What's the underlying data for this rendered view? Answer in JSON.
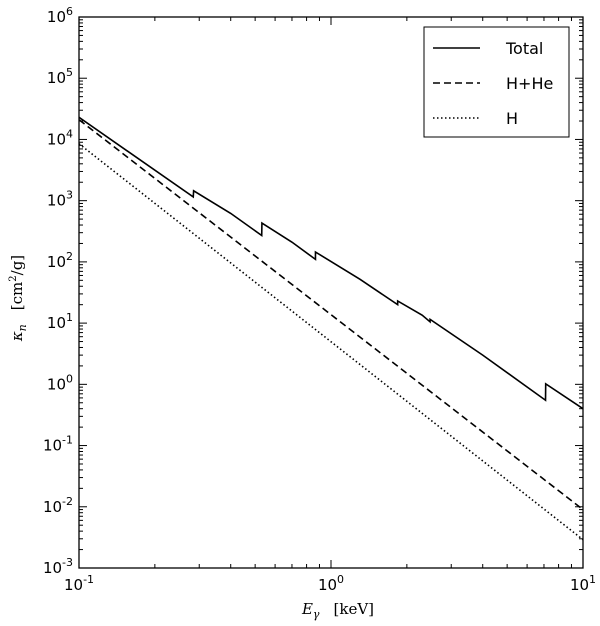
{
  "chart_data": {
    "type": "line",
    "xscale": "log",
    "yscale": "log",
    "xlim": [
      0.1,
      10
    ],
    "ylim": [
      0.001,
      1000000
    ],
    "xlabel": {
      "symbol": "E",
      "sub": "γ",
      "unit": "[keV]"
    },
    "ylabel": {
      "symbol": "κ",
      "sub": "n",
      "unit_pre": "[cm",
      "unit_sup": "2",
      "unit_post": "/g]"
    },
    "x_ticks": [
      {
        "value": 0.1,
        "base": "10",
        "exp": "-1"
      },
      {
        "value": 1,
        "base": "10",
        "exp": "0"
      },
      {
        "value": 10,
        "base": "10",
        "exp": "1"
      }
    ],
    "y_ticks": [
      {
        "value": 0.001,
        "base": "10",
        "exp": "-3"
      },
      {
        "value": 0.01,
        "base": "10",
        "exp": "-2"
      },
      {
        "value": 0.1,
        "base": "10",
        "exp": "-1"
      },
      {
        "value": 1,
        "base": "10",
        "exp": "0"
      },
      {
        "value": 10,
        "base": "10",
        "exp": "1"
      },
      {
        "value": 100,
        "base": "10",
        "exp": "2"
      },
      {
        "value": 1000,
        "base": "10",
        "exp": "3"
      },
      {
        "value": 10000,
        "base": "10",
        "exp": "4"
      },
      {
        "value": 100000,
        "base": "10",
        "exp": "5"
      },
      {
        "value": 1000000,
        "base": "10",
        "exp": "6"
      }
    ],
    "legend_position": "top-right",
    "series": [
      {
        "name": "Total",
        "style": "solid",
        "points": [
          [
            0.1,
            23000
          ],
          [
            0.284,
            1150
          ],
          [
            0.285,
            1450
          ],
          [
            0.4,
            620
          ],
          [
            0.531,
            270
          ],
          [
            0.532,
            430
          ],
          [
            0.7,
            210
          ],
          [
            0.8676,
            110
          ],
          [
            0.8677,
            145
          ],
          [
            1.304,
            52
          ],
          [
            1.8388,
            20
          ],
          [
            1.839,
            23
          ],
          [
            2.3,
            13.5
          ],
          [
            2.472,
            10.5
          ],
          [
            2.473,
            11.5
          ],
          [
            4.0,
            3.0
          ],
          [
            7.1,
            0.55
          ],
          [
            7.112,
            1.02
          ],
          [
            10,
            0.4
          ]
        ]
      },
      {
        "name": "H+He",
        "style": "dashed",
        "points": [
          [
            0.1,
            21000
          ],
          [
            10,
            0.009
          ]
        ]
      },
      {
        "name": "H",
        "style": "dotted",
        "points": [
          [
            0.1,
            8500
          ],
          [
            10,
            0.0029
          ]
        ]
      }
    ]
  }
}
